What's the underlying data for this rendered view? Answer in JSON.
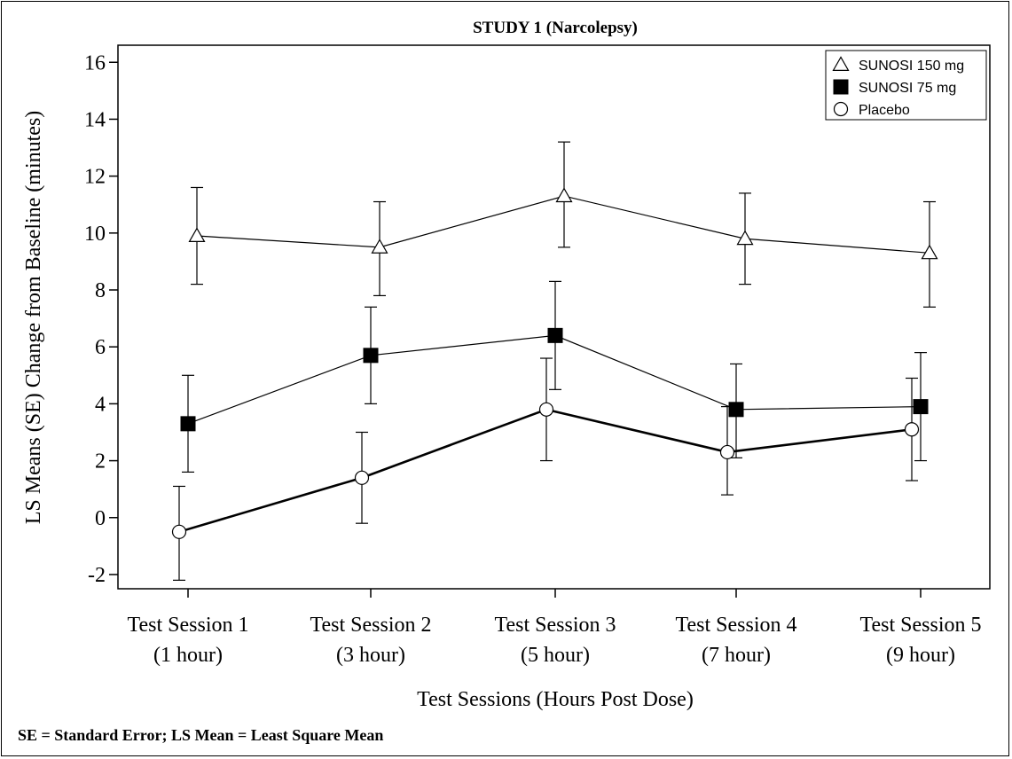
{
  "chart_data": {
    "type": "line",
    "title": "STUDY 1 (Narcolepsy)",
    "xlabel": "Test Sessions (Hours Post Dose)",
    "ylabel": "LS Means (SE) Change from Baseline (minutes)",
    "footnote": "SE = Standard Error; LS Mean = Least Square Mean",
    "categories": [
      [
        "Test Session 1",
        "(1 hour)"
      ],
      [
        "Test Session 2",
        "(3 hour)"
      ],
      [
        "Test Session 3",
        "(5 hour)"
      ],
      [
        "Test Session 4",
        "(7 hour)"
      ],
      [
        "Test Session 5",
        "(9 hour)"
      ]
    ],
    "ylim": [
      -2.5,
      16.6
    ],
    "yticks": [
      -2,
      0,
      2,
      4,
      6,
      8,
      10,
      12,
      14,
      16
    ],
    "grid": false,
    "legend_position": "top-right",
    "series": [
      {
        "name": "SUNOSI 150 mg",
        "marker": "triangle-open",
        "values": [
          9.9,
          9.5,
          11.3,
          9.8,
          9.3
        ],
        "err_low": [
          8.2,
          7.8,
          9.5,
          8.2,
          7.4
        ],
        "err_high": [
          11.6,
          11.1,
          13.2,
          11.4,
          11.1
        ]
      },
      {
        "name": "SUNOSI 75 mg",
        "marker": "square-filled",
        "values": [
          3.3,
          5.7,
          6.4,
          3.8,
          3.9
        ],
        "err_low": [
          1.6,
          4.0,
          4.5,
          2.1,
          2.0
        ],
        "err_high": [
          5.0,
          7.4,
          8.3,
          5.4,
          5.8
        ]
      },
      {
        "name": "Placebo",
        "marker": "circle-open",
        "values": [
          -0.5,
          1.4,
          3.8,
          2.3,
          3.1
        ],
        "err_low": [
          -2.2,
          -0.2,
          2.0,
          0.8,
          1.3
        ],
        "err_high": [
          1.1,
          3.0,
          5.6,
          3.9,
          4.9
        ]
      }
    ]
  }
}
